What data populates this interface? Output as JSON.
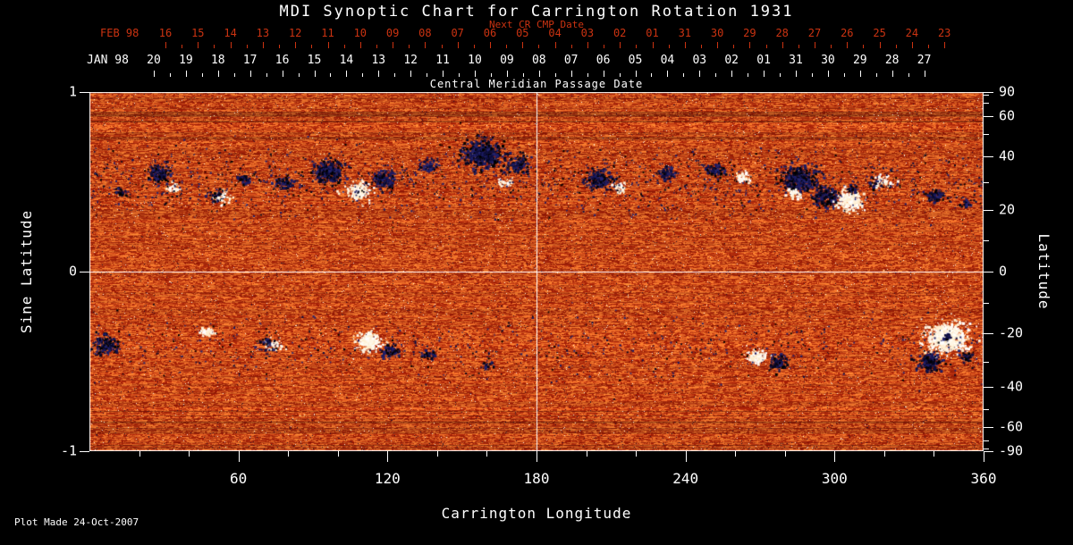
{
  "title": "MDI Synoptic Chart for Carrington Rotation 1931",
  "footer": {
    "plot_made": "Plot Made 24-Oct-2007"
  },
  "colors": {
    "background": "#000000",
    "text": "#ffffff",
    "red": "#cc3311"
  },
  "chart_data": {
    "type": "heatmap",
    "title": "MDI Synoptic Chart for Carrington Rotation 1931",
    "xlabel": "Carrington Longitude",
    "ylabel_left": "Sine Latitude",
    "ylabel_right": "Latitude",
    "x_range": [
      0,
      360
    ],
    "y_range_sine": [
      -1,
      1
    ],
    "x_ticks": [
      60,
      120,
      180,
      240,
      300,
      360
    ],
    "x_minor_step": 20,
    "left_ticks": [
      1,
      0,
      -1
    ],
    "right_ticks": [
      90,
      60,
      40,
      20,
      0,
      -20,
      -40,
      -60,
      -90
    ],
    "right_minor_ticks": [
      80,
      70,
      50,
      30,
      10,
      -10,
      -30,
      -50,
      -70,
      -80
    ],
    "grid": {
      "horizontal_at_sine_lat": 0,
      "vertical_at_longitude": 180
    },
    "top_axis": {
      "title": "Central Meridian Passage Date",
      "cmp_month": "JAN 98",
      "cmp_dates": [
        "20",
        "19",
        "18",
        "17",
        "16",
        "15",
        "14",
        "13",
        "12",
        "11",
        "10",
        "09",
        "08",
        "07",
        "06",
        "05",
        "04",
        "03",
        "02",
        "01",
        "31",
        "30",
        "29",
        "28",
        "27"
      ],
      "next_label": "Next CR CMP Date",
      "next_month": "FEB 98",
      "next_dates": [
        "16",
        "15",
        "14",
        "13",
        "12",
        "11",
        "10",
        "09",
        "08",
        "07",
        "06",
        "05",
        "04",
        "03",
        "02",
        "01",
        "31",
        "30",
        "29",
        "28",
        "27",
        "26",
        "25",
        "24",
        "23"
      ]
    },
    "palette": {
      "map_low": "#962005",
      "map_high": "#ff8c3c",
      "positive_spots": [
        "#ffffff",
        "#fff7e6",
        "#ffeecd"
      ],
      "negative_spots": [
        "#05051a",
        "#0f0f40",
        "#1b1b63",
        "#000000",
        "#24246e"
      ]
    },
    "active_regions": [
      {
        "lon": 12,
        "sine_lat": 0.45,
        "radius_deg": 2.5,
        "polarity": "negative",
        "strength": 0.35
      },
      {
        "lon": 28,
        "sine_lat": 0.55,
        "radius_deg": 4.5,
        "polarity": "negative",
        "strength": 0.55
      },
      {
        "lon": 33,
        "sine_lat": 0.47,
        "radius_deg": 2.5,
        "polarity": "positive",
        "strength": 0.45
      },
      {
        "lon": 52,
        "sine_lat": 0.42,
        "radius_deg": 3.5,
        "polarity": "mixed",
        "strength": 0.55
      },
      {
        "lon": 62,
        "sine_lat": 0.52,
        "radius_deg": 3,
        "polarity": "negative",
        "strength": 0.4
      },
      {
        "lon": 78,
        "sine_lat": 0.5,
        "radius_deg": 3.5,
        "polarity": "negative",
        "strength": 0.45
      },
      {
        "lon": 96,
        "sine_lat": 0.56,
        "radius_deg": 5.5,
        "polarity": "negative",
        "strength": 0.7
      },
      {
        "lon": 108,
        "sine_lat": 0.45,
        "radius_deg": 4,
        "polarity": "positive",
        "strength": 0.85
      },
      {
        "lon": 118,
        "sine_lat": 0.52,
        "radius_deg": 4.5,
        "polarity": "negative",
        "strength": 0.6
      },
      {
        "lon": 136,
        "sine_lat": 0.6,
        "radius_deg": 3.5,
        "polarity": "negative",
        "strength": 0.4
      },
      {
        "lon": 158,
        "sine_lat": 0.66,
        "radius_deg": 7,
        "polarity": "negative",
        "strength": 0.85
      },
      {
        "lon": 172,
        "sine_lat": 0.6,
        "radius_deg": 4.5,
        "polarity": "negative",
        "strength": 0.5
      },
      {
        "lon": 167,
        "sine_lat": 0.5,
        "radius_deg": 2.5,
        "polarity": "positive",
        "strength": 0.35
      },
      {
        "lon": 205,
        "sine_lat": 0.52,
        "radius_deg": 5,
        "polarity": "negative",
        "strength": 0.65
      },
      {
        "lon": 213,
        "sine_lat": 0.47,
        "radius_deg": 2.5,
        "polarity": "positive",
        "strength": 0.5
      },
      {
        "lon": 232,
        "sine_lat": 0.55,
        "radius_deg": 3.5,
        "polarity": "negative",
        "strength": 0.5
      },
      {
        "lon": 252,
        "sine_lat": 0.57,
        "radius_deg": 3.5,
        "polarity": "negative",
        "strength": 0.5
      },
      {
        "lon": 263,
        "sine_lat": 0.53,
        "radius_deg": 2.5,
        "polarity": "positive",
        "strength": 0.5
      },
      {
        "lon": 285,
        "sine_lat": 0.52,
        "radius_deg": 6,
        "polarity": "negative",
        "strength": 0.8
      },
      {
        "lon": 283,
        "sine_lat": 0.44,
        "radius_deg": 2.5,
        "polarity": "positive",
        "strength": 0.6
      },
      {
        "lon": 296,
        "sine_lat": 0.42,
        "radius_deg": 5,
        "polarity": "negative",
        "strength": 0.7
      },
      {
        "lon": 306,
        "sine_lat": 0.4,
        "radius_deg": 4.5,
        "polarity": "positive",
        "strength": 0.9
      },
      {
        "lon": 307,
        "sine_lat": 0.46,
        "radius_deg": 2,
        "polarity": "negative",
        "strength": 0.6
      },
      {
        "lon": 318,
        "sine_lat": 0.5,
        "radius_deg": 3.5,
        "polarity": "mixed",
        "strength": 0.5
      },
      {
        "lon": 340,
        "sine_lat": 0.42,
        "radius_deg": 3.5,
        "polarity": "negative",
        "strength": 0.45
      },
      {
        "lon": 353,
        "sine_lat": 0.38,
        "radius_deg": 2.5,
        "polarity": "negative",
        "strength": 0.35
      },
      {
        "lon": 6,
        "sine_lat": -0.4,
        "radius_deg": 4.5,
        "polarity": "negative",
        "strength": 0.6
      },
      {
        "lon": 47,
        "sine_lat": -0.33,
        "radius_deg": 2.5,
        "polarity": "positive",
        "strength": 0.5
      },
      {
        "lon": 73,
        "sine_lat": -0.4,
        "radius_deg": 3.5,
        "polarity": "mixed",
        "strength": 0.5
      },
      {
        "lon": 112,
        "sine_lat": -0.38,
        "radius_deg": 4.5,
        "polarity": "positive",
        "strength": 0.85
      },
      {
        "lon": 121,
        "sine_lat": -0.44,
        "radius_deg": 3.5,
        "polarity": "negative",
        "strength": 0.5
      },
      {
        "lon": 136,
        "sine_lat": -0.46,
        "radius_deg": 2.5,
        "polarity": "negative",
        "strength": 0.4
      },
      {
        "lon": 160,
        "sine_lat": -0.52,
        "radius_deg": 2.5,
        "polarity": "negative",
        "strength": 0.3
      },
      {
        "lon": 268,
        "sine_lat": -0.47,
        "radius_deg": 3.5,
        "polarity": "positive",
        "strength": 0.6
      },
      {
        "lon": 277,
        "sine_lat": -0.5,
        "radius_deg": 3.5,
        "polarity": "negative",
        "strength": 0.6
      },
      {
        "lon": 345,
        "sine_lat": -0.36,
        "radius_deg": 7,
        "polarity": "positive",
        "strength": 1
      },
      {
        "lon": 345,
        "sine_lat": -0.36,
        "radius_deg": 1.6,
        "polarity": "negative",
        "strength": 0.9
      },
      {
        "lon": 338,
        "sine_lat": -0.5,
        "radius_deg": 4.5,
        "polarity": "negative",
        "strength": 0.7
      },
      {
        "lon": 353,
        "sine_lat": -0.47,
        "radius_deg": 2.5,
        "polarity": "negative",
        "strength": 0.5
      }
    ],
    "scatter_bands": [
      {
        "sine_lat": 0.5,
        "spread": 0.1,
        "count": 1600,
        "polarity": "negative"
      },
      {
        "sine_lat": -0.42,
        "spread": 0.09,
        "count": 800,
        "polarity": "negative"
      }
    ]
  }
}
